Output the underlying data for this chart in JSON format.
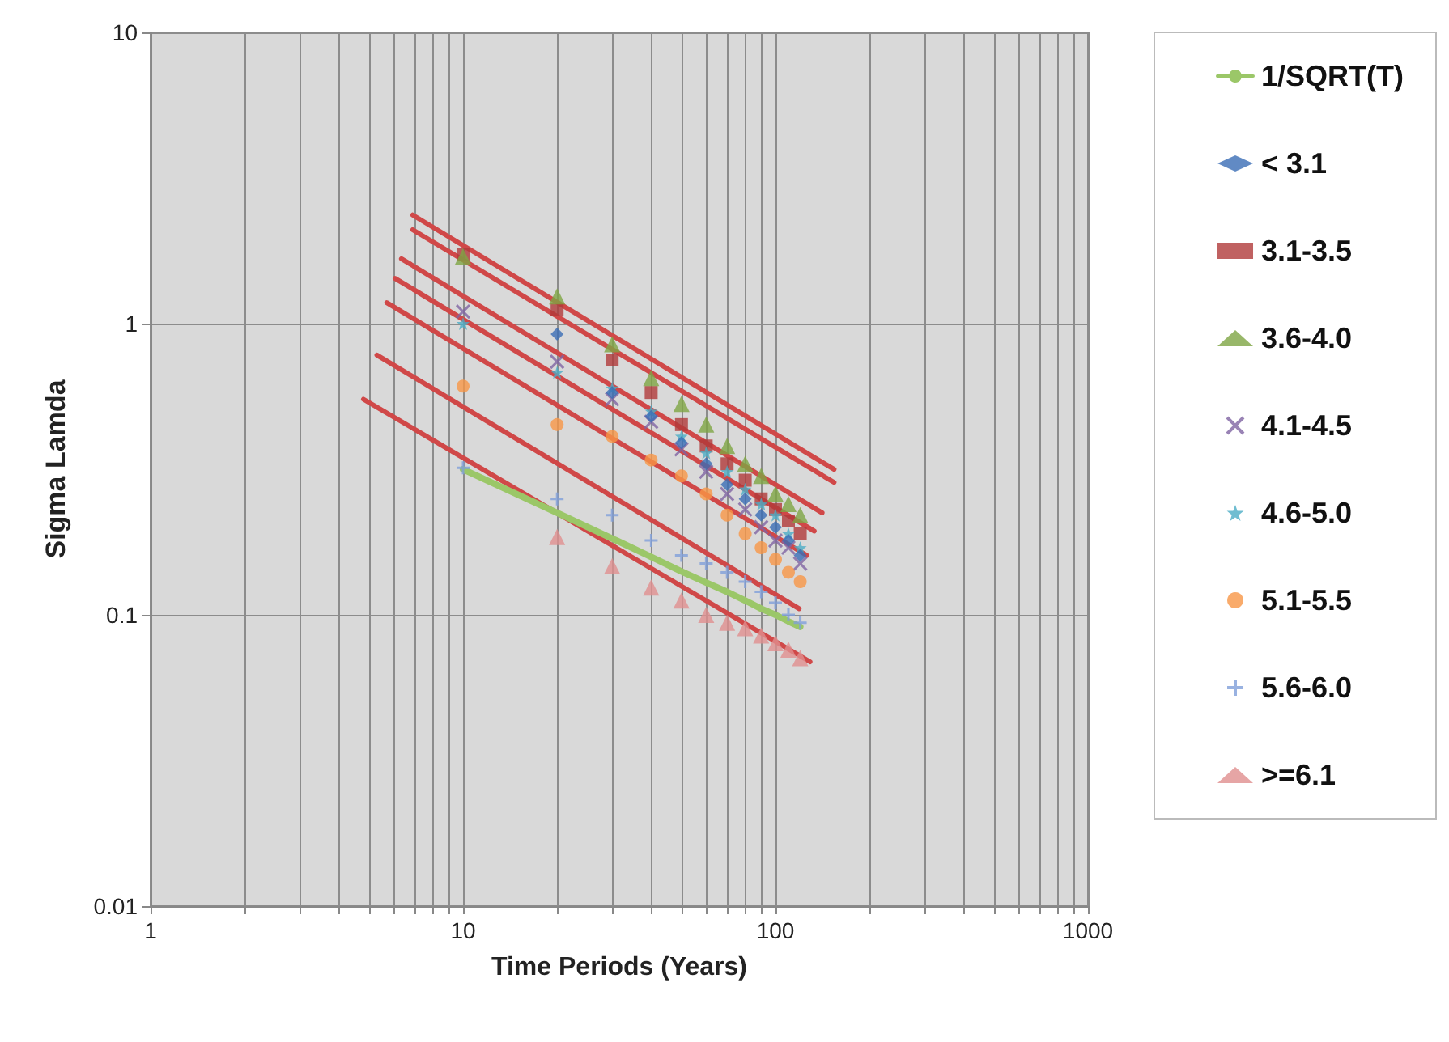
{
  "chart_data": {
    "type": "scatter",
    "xlabel": "Time Periods (Years)",
    "ylabel": "Sigma Lamda",
    "log": "xy",
    "grid": true,
    "legend": "right",
    "xlim": [
      1,
      1000
    ],
    "ylim": [
      0.01,
      10
    ],
    "xticks": [
      1,
      {
        "value": 2,
        "label": null
      },
      {
        "value": 3,
        "label": null
      },
      {
        "value": 4,
        "label": null
      },
      {
        "value": 5,
        "label": null
      },
      {
        "value": 6,
        "label": null
      },
      {
        "value": 7,
        "label": null
      },
      {
        "value": 8,
        "label": null
      },
      {
        "value": 9,
        "label": null
      },
      10,
      {
        "value": 20,
        "label": null
      },
      {
        "value": 30,
        "label": null
      },
      {
        "value": 40,
        "label": null
      },
      {
        "value": 50,
        "label": null
      },
      {
        "value": 60,
        "label": null
      },
      {
        "value": 70,
        "label": null
      },
      {
        "value": 80,
        "label": null
      },
      {
        "value": 90,
        "label": null
      },
      100,
      {
        "value": 200,
        "label": null
      },
      {
        "value": 300,
        "label": null
      },
      {
        "value": 400,
        "label": null
      },
      {
        "value": 500,
        "label": null
      },
      {
        "value": 600,
        "label": null
      },
      {
        "value": 700,
        "label": null
      },
      {
        "value": 800,
        "label": null
      },
      {
        "value": 900,
        "label": null
      },
      1000
    ],
    "yticks": [
      0.01,
      0.1,
      1,
      10
    ],
    "series": [
      {
        "name": "1/SQRT(T)",
        "type": "line",
        "color": "#9bc768",
        "marker": "none",
        "line_style": "solid",
        "x": [
          10,
          20,
          30,
          40,
          50,
          60,
          70,
          80,
          90,
          100,
          110,
          120
        ],
        "values": [
          0.316,
          0.224,
          0.183,
          0.158,
          0.141,
          0.129,
          0.12,
          0.112,
          0.105,
          0.1,
          0.095,
          0.091
        ]
      },
      {
        "name": "< 3.1",
        "color": "#3a6db5",
        "marker": "diamond",
        "x": [
          20,
          30,
          40,
          50,
          60,
          70,
          80,
          90,
          100,
          110,
          120
        ],
        "values": [
          0.92,
          0.58,
          0.48,
          0.39,
          0.33,
          0.28,
          0.25,
          0.22,
          0.2,
          0.18,
          0.16
        ]
      },
      {
        "name": "3.1-3.5",
        "color": "#b03a3a",
        "marker": "square",
        "x": [
          10,
          20,
          30,
          40,
          50,
          60,
          70,
          80,
          90,
          100,
          110,
          120
        ],
        "values": [
          1.73,
          1.12,
          0.75,
          0.58,
          0.45,
          0.38,
          0.33,
          0.29,
          0.25,
          0.23,
          0.21,
          0.19
        ]
      },
      {
        "name": "3.6-4.0",
        "color": "#7ea543",
        "marker": "triangle",
        "x": [
          10,
          20,
          30,
          40,
          50,
          60,
          70,
          80,
          90,
          100,
          110,
          120
        ],
        "values": [
          1.7,
          1.24,
          0.85,
          0.65,
          0.53,
          0.45,
          0.38,
          0.33,
          0.3,
          0.26,
          0.24,
          0.22
        ]
      },
      {
        "name": "4.1-4.5",
        "color": "#8064a2",
        "marker": "cross",
        "x": [
          10,
          20,
          30,
          40,
          50,
          60,
          70,
          80,
          90,
          100,
          110,
          120
        ],
        "values": [
          1.1,
          0.74,
          0.55,
          0.46,
          0.37,
          0.31,
          0.26,
          0.23,
          0.2,
          0.18,
          0.17,
          0.15
        ]
      },
      {
        "name": "4.6-5.0",
        "color": "#4bacc6",
        "marker": "star",
        "x": [
          10,
          20,
          30,
          40,
          50,
          60,
          70,
          80,
          90,
          100,
          110,
          120
        ],
        "values": [
          1.0,
          0.68,
          0.6,
          0.5,
          0.41,
          0.36,
          0.31,
          0.27,
          0.24,
          0.22,
          0.19,
          0.17
        ]
      },
      {
        "name": "5.1-5.5",
        "color": "#f79646",
        "marker": "circle",
        "x": [
          10,
          20,
          30,
          40,
          50,
          60,
          70,
          80,
          90,
          100,
          110,
          120
        ],
        "values": [
          0.61,
          0.45,
          0.41,
          0.34,
          0.3,
          0.26,
          0.22,
          0.19,
          0.17,
          0.155,
          0.14,
          0.13
        ]
      },
      {
        "name": "5.6-6.0",
        "color": "#7f9fd9",
        "marker": "plus",
        "x": [
          10,
          20,
          30,
          40,
          50,
          60,
          70,
          80,
          90,
          100,
          110,
          120
        ],
        "values": [
          0.32,
          0.25,
          0.22,
          0.18,
          0.16,
          0.15,
          0.14,
          0.13,
          0.12,
          0.11,
          0.1,
          0.094
        ]
      },
      {
        "name": ">=6.1",
        "color": "#e08e8e",
        "marker": "triangle",
        "x": [
          20,
          30,
          40,
          50,
          60,
          70,
          80,
          90,
          100,
          110,
          120
        ],
        "values": [
          0.185,
          0.147,
          0.124,
          0.112,
          0.1,
          0.094,
          0.09,
          0.085,
          0.08,
          0.076,
          0.071
        ]
      },
      {
        "type": "line",
        "color": "#d04848",
        "marker": "none",
        "line_style": "solid",
        "x": [
          6.9,
          154
        ],
        "values": [
          2.36,
          0.316
        ]
      },
      {
        "type": "line",
        "color": "#d04848",
        "marker": "none",
        "line_style": "solid",
        "x": [
          6.9,
          154
        ],
        "values": [
          2.1,
          0.285
        ]
      },
      {
        "type": "line",
        "color": "#d04848",
        "marker": "none",
        "line_style": "solid",
        "x": [
          6.35,
          141
        ],
        "values": [
          1.67,
          0.224
        ]
      },
      {
        "type": "line",
        "color": "#d04848",
        "marker": "none",
        "line_style": "solid",
        "x": [
          6.06,
          133
        ],
        "values": [
          1.43,
          0.194
        ]
      },
      {
        "type": "line",
        "color": "#d04848",
        "marker": "none",
        "line_style": "solid",
        "x": [
          5.7,
          126
        ],
        "values": [
          1.18,
          0.16
        ]
      },
      {
        "type": "line",
        "color": "#d04848",
        "marker": "none",
        "line_style": "solid",
        "x": [
          5.3,
          119
        ],
        "values": [
          0.78,
          0.105
        ]
      },
      {
        "type": "line",
        "color": "#d04848",
        "marker": "none",
        "line_style": "solid",
        "x": [
          4.8,
          129
        ],
        "values": [
          0.55,
          0.069
        ]
      }
    ]
  }
}
